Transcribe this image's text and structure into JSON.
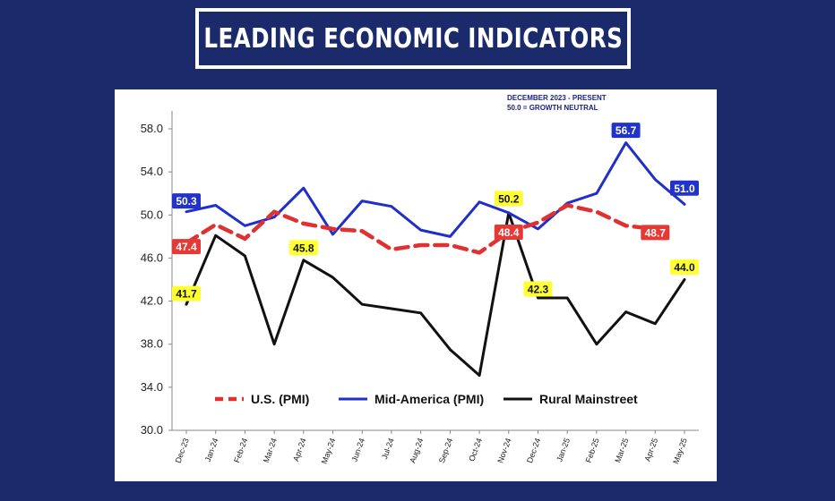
{
  "page": {
    "title": "LEADING ECONOMIC INDICATORS"
  },
  "colors": {
    "background": "#1b2a6b",
    "us": "#e03030",
    "mid_america": "#1f2fc8",
    "rural": "#111111",
    "highlight_yellow": "#ffff33",
    "label_red": "#e53935",
    "label_blue": "#2233cc"
  },
  "chart_data": {
    "type": "line",
    "title": "LEADING ECONOMIC INDICATORS",
    "annotations": [
      "DECEMBER 2023 - PRESENT",
      "50.0 = GROWTH NEUTRAL"
    ],
    "categories": [
      "Dec-23",
      "Jan-24",
      "Feb-24",
      "Mar-24",
      "Apr-24",
      "May-24",
      "Jun-24",
      "Jul-24",
      "Aug-24",
      "Sep-24",
      "Oct-24",
      "Nov-24",
      "Dec-24",
      "Jan-25",
      "Feb-25",
      "Mar-25",
      "Apr-25",
      "May-25"
    ],
    "ylim": [
      30.0,
      58.0
    ],
    "yticks": [
      "30.0",
      "34.0",
      "38.0",
      "42.0",
      "46.0",
      "50.0",
      "54.0",
      "58.0"
    ],
    "grid": false,
    "legend_position": "bottom",
    "series": [
      {
        "name": "U.S. (PMI)",
        "style": "dashed",
        "values": [
          47.4,
          49.1,
          47.8,
          50.3,
          49.2,
          48.7,
          48.5,
          46.8,
          47.2,
          47.2,
          46.5,
          48.4,
          49.3,
          50.9,
          50.3,
          49.0,
          48.7,
          null
        ]
      },
      {
        "name": "Mid-America (PMI)",
        "style": "solid",
        "values": [
          50.3,
          50.9,
          49.0,
          49.8,
          52.5,
          48.2,
          51.3,
          50.8,
          48.6,
          48.0,
          51.2,
          50.2,
          48.7,
          51.1,
          52.0,
          56.7,
          53.3,
          51.0
        ]
      },
      {
        "name": "Rural Mainstreet",
        "style": "solid",
        "values": [
          41.7,
          48.1,
          46.2,
          38.0,
          45.8,
          44.2,
          41.7,
          41.3,
          40.9,
          37.5,
          35.1,
          50.2,
          42.3,
          42.3,
          38.0,
          41.0,
          39.9,
          44.0
        ]
      }
    ],
    "data_labels": [
      {
        "series": "Mid-America (PMI)",
        "index": 0,
        "text": "50.3",
        "box": "blue"
      },
      {
        "series": "Mid-America (PMI)",
        "index": 15,
        "text": "56.7",
        "box": "blue"
      },
      {
        "series": "Mid-America (PMI)",
        "index": 17,
        "text": "51.0",
        "box": "blue"
      },
      {
        "series": "U.S. (PMI)",
        "index": 0,
        "text": "47.4",
        "box": "red"
      },
      {
        "series": "U.S. (PMI)",
        "index": 11,
        "text": "48.4",
        "box": "red"
      },
      {
        "series": "U.S. (PMI)",
        "index": 16,
        "text": "48.7",
        "box": "red"
      },
      {
        "series": "Rural Mainstreet",
        "index": 0,
        "text": "41.7",
        "box": "yellow"
      },
      {
        "series": "Rural Mainstreet",
        "index": 4,
        "text": "45.8",
        "box": "yellow"
      },
      {
        "series": "Rural Mainstreet",
        "index": 11,
        "text": "50.2",
        "box": "yellow"
      },
      {
        "series": "Rural Mainstreet",
        "index": 12,
        "text": "42.3",
        "box": "yellow"
      },
      {
        "series": "Rural Mainstreet",
        "index": 17,
        "text": "44.0",
        "box": "yellow"
      }
    ]
  }
}
